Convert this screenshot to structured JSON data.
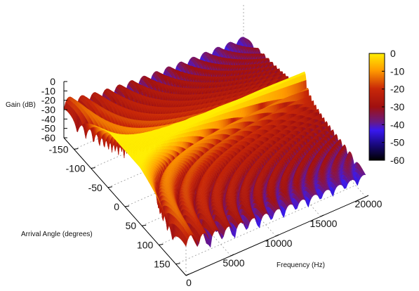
{
  "chart_data": {
    "type": "surface3d",
    "title": "",
    "zlabel": "Gain (dB)",
    "ylabel": "Arrival Angle (degrees)",
    "xlabel": "Frequency (Hz)",
    "z_ticks": [
      0,
      -10,
      -20,
      -30,
      -40,
      -50,
      -60
    ],
    "y_ticks": [
      -150,
      -100,
      -50,
      0,
      50,
      100,
      150
    ],
    "x_ticks": [
      0,
      5000,
      10000,
      15000,
      20000
    ],
    "zlim": [
      -60,
      0
    ],
    "ylim": [
      -180,
      180
    ],
    "xlim": [
      0,
      20000
    ],
    "colorbar": {
      "ticks": [
        0,
        -10,
        -20,
        -30,
        -40,
        -50,
        -60
      ],
      "range": [
        -60,
        0
      ],
      "colors": [
        {
          "value": 0,
          "color": "#ffee00"
        },
        {
          "value": -10,
          "color": "#ff9a00"
        },
        {
          "value": -20,
          "color": "#c82808"
        },
        {
          "value": -30,
          "color": "#a01010"
        },
        {
          "value": -40,
          "color": "#3818f0"
        },
        {
          "value": -50,
          "color": "#180878"
        },
        {
          "value": -60,
          "color": "#000000"
        }
      ]
    },
    "grid": true,
    "description_series": [
      {
        "angle": -150,
        "peak_gain_db": 0
      },
      {
        "angle": 0,
        "peak_gain_db": 0
      },
      {
        "angle": 150,
        "peak_gain_db": 0
      }
    ]
  }
}
